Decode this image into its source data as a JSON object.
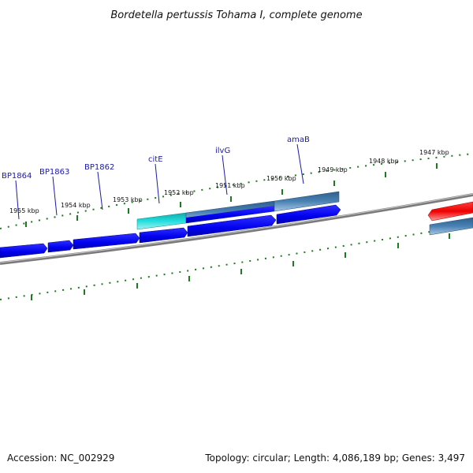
{
  "title": "Bordetella pertussis Tohama I, complete genome",
  "footer": {
    "accession": "Accession: NC_002929",
    "summary": "Topology: circular; Length: 4,086,189 bp; Genes: 3,497"
  },
  "colors": {
    "backbone": "#808080",
    "tick": "#1e7a1e",
    "gene_blue": "#0000ee",
    "gene_cyan": "#11c8c8",
    "gene_steel": "#4a82b4",
    "gene_red": "#ee1111",
    "gene_label": "#1a1aa8"
  },
  "ticks": [
    {
      "label": "1955 kbp"
    },
    {
      "label": "1954 kbp"
    },
    {
      "label": "1953 kbp"
    },
    {
      "label": "1952 kbp"
    },
    {
      "label": "1951 kbp"
    },
    {
      "label": "1950 kbp"
    },
    {
      "label": "1949 kbp"
    },
    {
      "label": "1948 kbp"
    },
    {
      "label": "1947 kbp"
    }
  ],
  "gene_labels": [
    {
      "label": "BP1864"
    },
    {
      "label": "BP1863"
    },
    {
      "label": "BP1862"
    },
    {
      "label": "citE"
    },
    {
      "label": "ilvG"
    },
    {
      "label": "amaB"
    }
  ]
}
